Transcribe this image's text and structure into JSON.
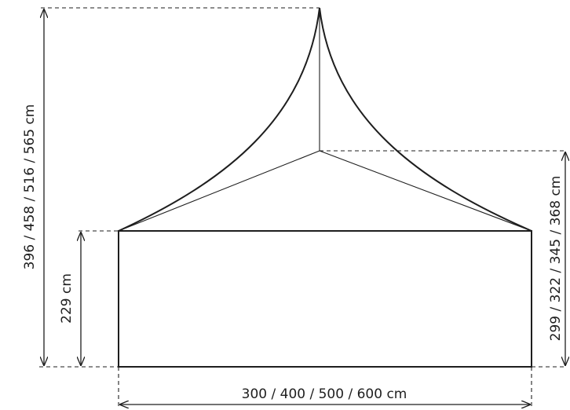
{
  "dimensions": {
    "total_height": "396 / 458 / 516 / 565 cm",
    "wall_height": "229 cm",
    "eave_to_ridge_height": "299 / 322 / 345 / 368 cm",
    "width": "300 / 400 / 500 / 600 cm"
  },
  "colors": {
    "stroke": "#1e1e1e",
    "background": "#ffffff"
  }
}
